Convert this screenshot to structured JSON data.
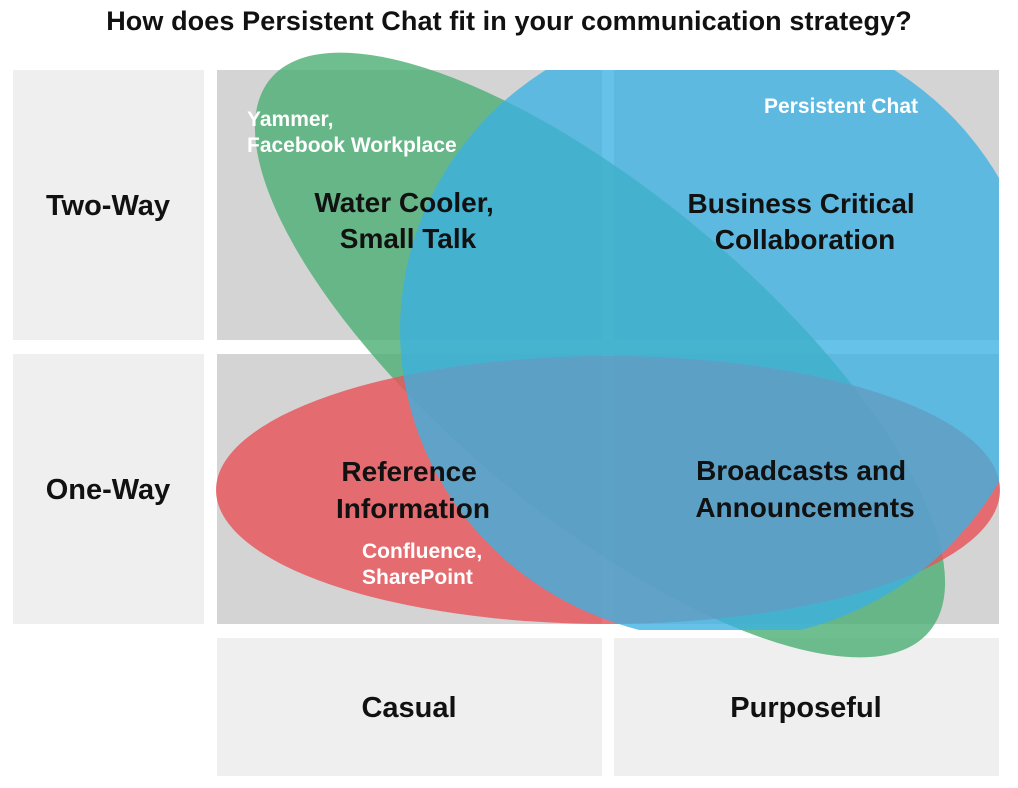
{
  "title": "How does Persistent Chat fit in your communication strategy?",
  "rows": {
    "top": "Two-Way",
    "bottom": "One-Way"
  },
  "columns": {
    "left": "Casual",
    "right": "Purposeful"
  },
  "quadrants": {
    "top_left": [
      "Water Cooler,",
      "Small Talk"
    ],
    "top_right": [
      "Business Critical",
      "Collaboration"
    ],
    "bottom_left": [
      "Reference",
      "Information"
    ],
    "bottom_right": [
      "Broadcasts and",
      "Announcements"
    ]
  },
  "tools": {
    "green": [
      "Yammer,",
      "Facebook Workplace"
    ],
    "blue": [
      "Persistent Chat"
    ],
    "red": [
      "Confluence,",
      "SharePoint"
    ]
  },
  "colors": {
    "cell_gray": "#d4d4d4",
    "cell_light": "#efefef",
    "green": "#4fb076",
    "blue": "#3bb1e2",
    "red": "#e8565a",
    "text_dark": "#111111",
    "text_light": "#ffffff"
  }
}
